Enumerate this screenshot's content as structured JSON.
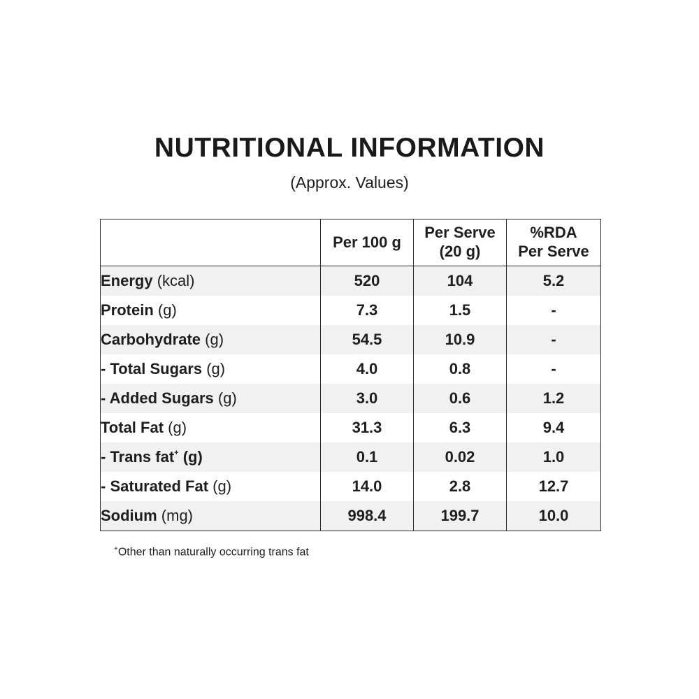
{
  "title": "NUTRITIONAL INFORMATION",
  "subtitle": "(Approx. Values)",
  "table": {
    "headers": {
      "per100_line1": "Per 100 g",
      "serve_line1": "Per Serve",
      "serve_line2": "(20 g)",
      "rda_line1": "%RDA",
      "rda_line2": "Per Serve"
    },
    "rows": [
      {
        "name": "Energy",
        "unit": "(kcal)",
        "prefix": "",
        "sup": "",
        "per100": "520",
        "serve": "104",
        "rda": "5.2"
      },
      {
        "name": "Protein",
        "unit": "(g)",
        "prefix": "",
        "sup": "",
        "per100": "7.3",
        "serve": "1.5",
        "rda": "-"
      },
      {
        "name": "Carbohydrate",
        "unit": "(g)",
        "prefix": "",
        "sup": "",
        "per100": "54.5",
        "serve": "10.9",
        "rda": "-"
      },
      {
        "name": "Total Sugars",
        "unit": "(g)",
        "prefix": "- ",
        "sup": "",
        "per100": "4.0",
        "serve": "0.8",
        "rda": "-"
      },
      {
        "name": "Added Sugars",
        "unit": "(g)",
        "prefix": "- ",
        "sup": "",
        "per100": "3.0",
        "serve": "0.6",
        "rda": "1.2"
      },
      {
        "name": "Total Fat",
        "unit": "(g)",
        "prefix": "",
        "sup": "",
        "per100": "31.3",
        "serve": "6.3",
        "rda": "9.4"
      },
      {
        "name": "Trans fat",
        "unit": "(g)",
        "prefix": "- ",
        "sup": "+",
        "per100": "0.1",
        "serve": "0.02",
        "rda": "1.0"
      },
      {
        "name": "Saturated Fat",
        "unit": "(g)",
        "prefix": "- ",
        "sup": "",
        "per100": "14.0",
        "serve": "2.8",
        "rda": "12.7"
      },
      {
        "name": "Sodium",
        "unit": "(mg)",
        "prefix": "",
        "sup": "",
        "per100": "998.4",
        "serve": "199.7",
        "rda": "10.0"
      }
    ]
  },
  "footnote": {
    "mark": "+",
    "text": "Other than naturally occurring trans fat"
  }
}
